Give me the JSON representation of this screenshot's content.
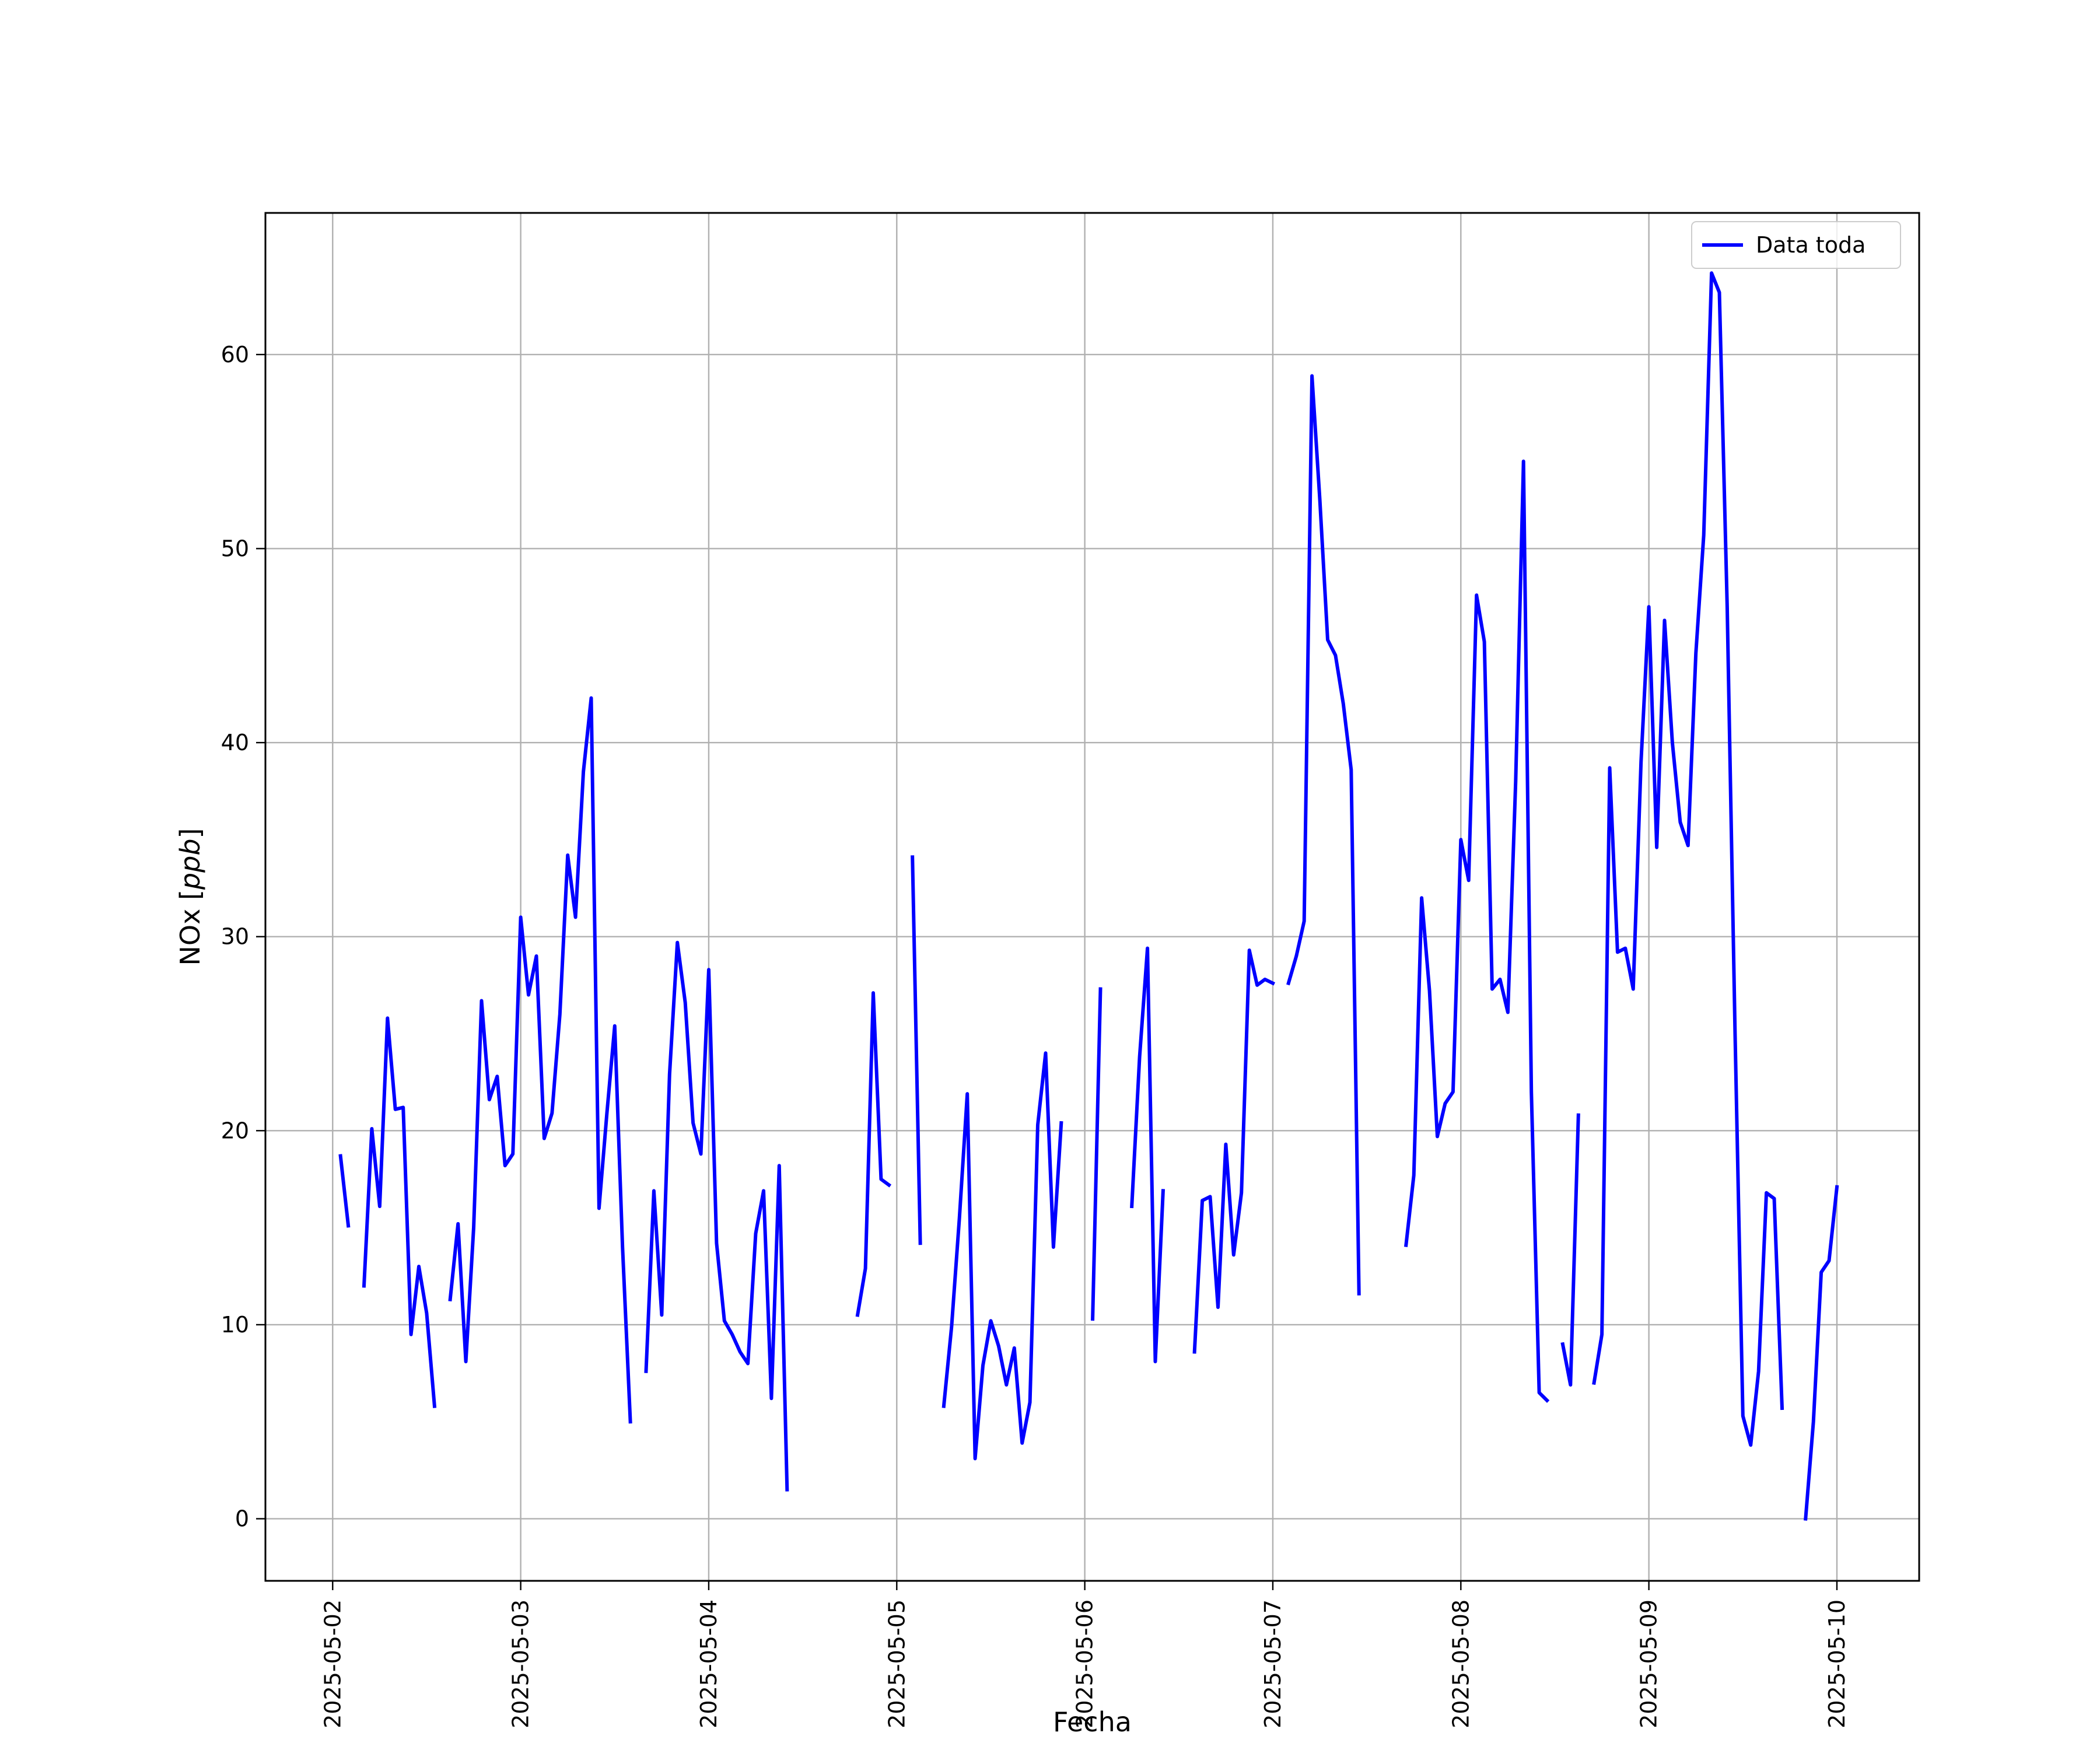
{
  "chart_data": {
    "type": "line",
    "title": "",
    "xlabel": "Fecha",
    "ylabel": "NOx [ppb]",
    "ylabel_main": "NOx [",
    "ylabel_unit": "ppb",
    "ylabel_close": "]",
    "xlim": [
      "2025-05-01 15:25",
      "2025-05-10 10:30"
    ],
    "ylim": [
      -3.2,
      67.3
    ],
    "grid": true,
    "legend_position": "top-right",
    "line_color": "#0000ff",
    "x_ticks": [
      {
        "value": "2025-05-02",
        "label": "2025-05-02"
      },
      {
        "value": "2025-05-03",
        "label": "2025-05-03"
      },
      {
        "value": "2025-05-04",
        "label": "2025-05-04"
      },
      {
        "value": "2025-05-05",
        "label": "2025-05-05"
      },
      {
        "value": "2025-05-06",
        "label": "2025-05-06"
      },
      {
        "value": "2025-05-07",
        "label": "2025-05-07"
      },
      {
        "value": "2025-05-08",
        "label": "2025-05-08"
      },
      {
        "value": "2025-05-09",
        "label": "2025-05-09"
      },
      {
        "value": "2025-05-10",
        "label": "2025-05-10"
      }
    ],
    "y_ticks": [
      {
        "value": 0,
        "label": "0"
      },
      {
        "value": 10,
        "label": "10"
      },
      {
        "value": 20,
        "label": "20"
      },
      {
        "value": 30,
        "label": "30"
      },
      {
        "value": 40,
        "label": "40"
      },
      {
        "value": 50,
        "label": "50"
      },
      {
        "value": 60,
        "label": "60"
      }
    ],
    "series": [
      {
        "name": "Data toda",
        "color": "#0000ff",
        "segments": [
          [
            [
              "2025-05-02 01:00",
              18.7
            ],
            [
              "2025-05-02 02:00",
              15.1
            ]
          ],
          [
            [
              "2025-05-02 04:00",
              12.0
            ],
            [
              "2025-05-02 05:00",
              20.1
            ],
            [
              "2025-05-02 06:00",
              16.1
            ],
            [
              "2025-05-02 07:00",
              25.8
            ],
            [
              "2025-05-02 08:00",
              21.1
            ],
            [
              "2025-05-02 09:00",
              21.2
            ],
            [
              "2025-05-02 10:00",
              9.5
            ],
            [
              "2025-05-02 11:00",
              13.0
            ],
            [
              "2025-05-02 12:00",
              10.6
            ],
            [
              "2025-05-02 13:00",
              5.8
            ]
          ],
          [
            [
              "2025-05-02 15:00",
              11.3
            ],
            [
              "2025-05-02 16:00",
              15.2
            ],
            [
              "2025-05-02 17:00",
              8.1
            ],
            [
              "2025-05-02 18:00",
              15.0
            ],
            [
              "2025-05-02 19:00",
              26.7
            ],
            [
              "2025-05-02 20:00",
              21.6
            ],
            [
              "2025-05-02 21:00",
              22.8
            ],
            [
              "2025-05-02 22:00",
              18.2
            ],
            [
              "2025-05-02 23:00",
              18.8
            ],
            [
              "2025-05-03 00:00",
              31.0
            ],
            [
              "2025-05-03 01:00",
              27.0
            ],
            [
              "2025-05-03 02:00",
              29.0
            ],
            [
              "2025-05-03 03:00",
              19.6
            ],
            [
              "2025-05-03 04:00",
              20.9
            ],
            [
              "2025-05-03 05:00",
              26.0
            ],
            [
              "2025-05-03 06:00",
              34.2
            ],
            [
              "2025-05-03 07:00",
              31.0
            ],
            [
              "2025-05-03 08:00",
              38.5
            ],
            [
              "2025-05-03 09:00",
              42.3
            ],
            [
              "2025-05-03 10:00",
              16.0
            ],
            [
              "2025-05-03 11:00",
              20.9
            ],
            [
              "2025-05-03 12:00",
              25.4
            ],
            [
              "2025-05-03 13:00",
              14.0
            ],
            [
              "2025-05-03 14:00",
              5.0
            ]
          ],
          [
            [
              "2025-05-03 16:00",
              7.6
            ],
            [
              "2025-05-03 17:00",
              16.9
            ],
            [
              "2025-05-03 18:00",
              10.5
            ],
            [
              "2025-05-03 19:00",
              22.9
            ],
            [
              "2025-05-03 20:00",
              29.7
            ],
            [
              "2025-05-03 21:00",
              26.6
            ],
            [
              "2025-05-03 22:00",
              20.4
            ],
            [
              "2025-05-03 23:00",
              18.8
            ],
            [
              "2025-05-04 00:00",
              28.3
            ],
            [
              "2025-05-04 01:00",
              14.2
            ],
            [
              "2025-05-04 02:00",
              10.2
            ],
            [
              "2025-05-04 03:00",
              9.5
            ],
            [
              "2025-05-04 04:00",
              8.6
            ],
            [
              "2025-05-04 05:00",
              8.0
            ],
            [
              "2025-05-04 06:00",
              14.7
            ],
            [
              "2025-05-04 07:00",
              16.9
            ],
            [
              "2025-05-04 08:00",
              6.2
            ],
            [
              "2025-05-04 09:00",
              18.2
            ],
            [
              "2025-05-04 10:00",
              1.5
            ]
          ],
          [
            [
              "2025-05-04 19:00",
              10.5
            ],
            [
              "2025-05-04 20:00",
              12.9
            ],
            [
              "2025-05-04 21:00",
              27.1
            ],
            [
              "2025-05-04 22:00",
              17.5
            ],
            [
              "2025-05-04 23:00",
              17.2
            ]
          ],
          [
            [
              "2025-05-05 02:00",
              34.1
            ],
            [
              "2025-05-05 03:00",
              14.2
            ]
          ],
          [
            [
              "2025-05-05 06:00",
              5.8
            ],
            [
              "2025-05-05 07:00",
              9.9
            ],
            [
              "2025-05-05 08:00",
              15.5
            ],
            [
              "2025-05-05 09:00",
              21.9
            ],
            [
              "2025-05-05 10:00",
              3.1
            ],
            [
              "2025-05-05 11:00",
              7.9
            ],
            [
              "2025-05-05 12:00",
              10.2
            ],
            [
              "2025-05-05 13:00",
              8.9
            ],
            [
              "2025-05-05 14:00",
              6.9
            ],
            [
              "2025-05-05 15:00",
              8.8
            ],
            [
              "2025-05-05 16:00",
              3.9
            ],
            [
              "2025-05-05 17:00",
              6.0
            ],
            [
              "2025-05-05 18:00",
              20.3
            ],
            [
              "2025-05-05 19:00",
              24.0
            ],
            [
              "2025-05-05 20:00",
              14.0
            ],
            [
              "2025-05-05 21:00",
              20.4
            ]
          ],
          [
            [
              "2025-05-06 01:00",
              10.3
            ],
            [
              "2025-05-06 02:00",
              27.3
            ]
          ],
          [
            [
              "2025-05-06 06:00",
              16.1
            ],
            [
              "2025-05-06 07:00",
              23.8
            ],
            [
              "2025-05-06 08:00",
              29.4
            ],
            [
              "2025-05-06 09:00",
              8.1
            ],
            [
              "2025-05-06 10:00",
              16.9
            ]
          ],
          [
            [
              "2025-05-06 14:00",
              8.6
            ],
            [
              "2025-05-06 15:00",
              16.4
            ],
            [
              "2025-05-06 16:00",
              16.6
            ],
            [
              "2025-05-06 17:00",
              10.9
            ],
            [
              "2025-05-06 18:00",
              19.3
            ],
            [
              "2025-05-06 19:00",
              13.6
            ],
            [
              "2025-05-06 20:00",
              16.8
            ],
            [
              "2025-05-06 21:00",
              29.3
            ],
            [
              "2025-05-06 22:00",
              27.5
            ],
            [
              "2025-05-06 23:00",
              27.8
            ],
            [
              "2025-05-07 00:00",
              27.6
            ]
          ],
          [
            [
              "2025-05-07 02:00",
              27.6
            ],
            [
              "2025-05-07 03:00",
              29.0
            ],
            [
              "2025-05-07 04:00",
              30.8
            ],
            [
              "2025-05-07 05:00",
              58.9
            ],
            [
              "2025-05-07 06:00",
              52.5
            ],
            [
              "2025-05-07 07:00",
              45.3
            ],
            [
              "2025-05-07 08:00",
              44.5
            ],
            [
              "2025-05-07 09:00",
              42.0
            ],
            [
              "2025-05-07 10:00",
              38.6
            ],
            [
              "2025-05-07 11:00",
              11.6
            ]
          ],
          [
            [
              "2025-05-07 17:00",
              14.1
            ],
            [
              "2025-05-07 18:00",
              17.7
            ],
            [
              "2025-05-07 19:00",
              32.0
            ],
            [
              "2025-05-07 20:00",
              27.2
            ],
            [
              "2025-05-07 21:00",
              19.7
            ],
            [
              "2025-05-07 22:00",
              21.4
            ],
            [
              "2025-05-07 23:00",
              22.0
            ],
            [
              "2025-05-08 00:00",
              35.0
            ],
            [
              "2025-05-08 01:00",
              32.9
            ],
            [
              "2025-05-08 02:00",
              47.6
            ],
            [
              "2025-05-08 03:00",
              45.2
            ],
            [
              "2025-05-08 04:00",
              27.3
            ],
            [
              "2025-05-08 05:00",
              27.8
            ],
            [
              "2025-05-08 06:00",
              26.1
            ],
            [
              "2025-05-08 07:00",
              38.0
            ],
            [
              "2025-05-08 08:00",
              54.5
            ],
            [
              "2025-05-08 09:00",
              22.0
            ],
            [
              "2025-05-08 10:00",
              6.5
            ],
            [
              "2025-05-08 11:00",
              6.1
            ]
          ],
          [
            [
              "2025-05-08 13:00",
              9.0
            ],
            [
              "2025-05-08 14:00",
              6.9
            ],
            [
              "2025-05-08 15:00",
              20.8
            ]
          ],
          [
            [
              "2025-05-08 17:00",
              7.0
            ],
            [
              "2025-05-08 18:00",
              9.5
            ],
            [
              "2025-05-08 19:00",
              38.7
            ],
            [
              "2025-05-08 20:00",
              29.2
            ],
            [
              "2025-05-08 21:00",
              29.4
            ],
            [
              "2025-05-08 22:00",
              27.3
            ],
            [
              "2025-05-08 23:00",
              39.0
            ],
            [
              "2025-05-09 00:00",
              47.0
            ],
            [
              "2025-05-09 01:00",
              34.6
            ],
            [
              "2025-05-09 02:00",
              46.3
            ],
            [
              "2025-05-09 03:00",
              40.0
            ],
            [
              "2025-05-09 04:00",
              35.9
            ],
            [
              "2025-05-09 05:00",
              34.7
            ],
            [
              "2025-05-09 06:00",
              44.6
            ],
            [
              "2025-05-09 07:00",
              50.7
            ],
            [
              "2025-05-09 08:00",
              64.2
            ],
            [
              "2025-05-09 09:00",
              63.2
            ],
            [
              "2025-05-09 10:00",
              47.0
            ],
            [
              "2025-05-09 11:00",
              25.0
            ],
            [
              "2025-05-09 12:00",
              5.3
            ],
            [
              "2025-05-09 13:00",
              3.8
            ],
            [
              "2025-05-09 14:00",
              7.6
            ],
            [
              "2025-05-09 15:00",
              16.8
            ],
            [
              "2025-05-09 16:00",
              16.5
            ],
            [
              "2025-05-09 17:00",
              5.7
            ]
          ],
          [
            [
              "2025-05-09 20:00",
              0.0
            ],
            [
              "2025-05-09 21:00",
              5.0
            ],
            [
              "2025-05-09 22:00",
              12.7
            ],
            [
              "2025-05-09 23:00",
              13.3
            ],
            [
              "2025-05-10 00:00",
              17.1
            ]
          ]
        ]
      }
    ]
  }
}
